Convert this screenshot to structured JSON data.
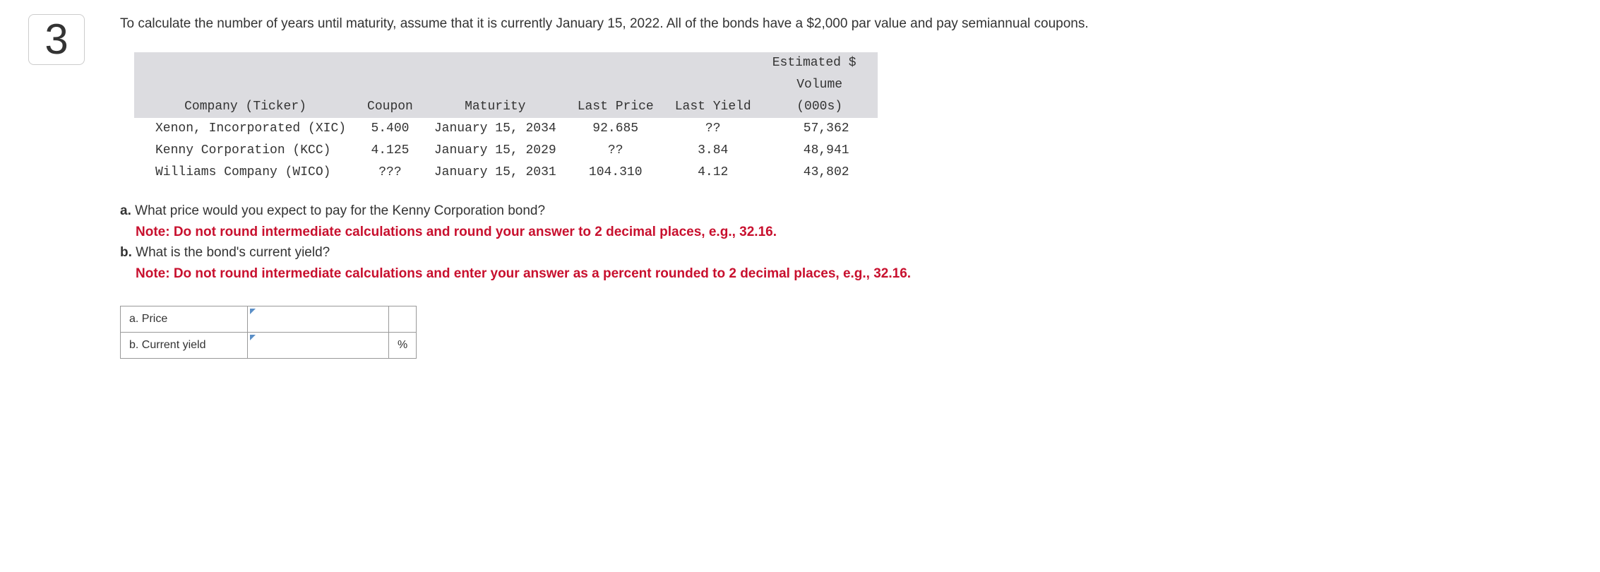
{
  "question_number": "3",
  "intro_text": "To calculate the number of years until maturity, assume that it is currently January 15, 2022. All of the bonds have a $2,000 par value and pay semiannual coupons.",
  "bond_table": {
    "header_estimated": "Estimated $",
    "header_volume": "Volume",
    "columns": {
      "company": "Company (Ticker)",
      "coupon": "Coupon",
      "maturity": "Maturity",
      "last_price": "Last Price",
      "last_yield": "Last Yield",
      "volume": "(000s)"
    },
    "rows": [
      {
        "company": "Xenon, Incorporated (XIC)",
        "coupon": "5.400",
        "maturity": "January 15, 2034",
        "last_price": "92.685",
        "last_yield": "??",
        "volume": "57,362"
      },
      {
        "company": "Kenny Corporation (KCC)",
        "coupon": "4.125",
        "maturity": "January 15, 2029",
        "last_price": "??",
        "last_yield": "3.84",
        "volume": "48,941"
      },
      {
        "company": "Williams Company (WICO)",
        "coupon": "???",
        "maturity": "January 15, 2031",
        "last_price": "104.310",
        "last_yield": "4.12",
        "volume": "43,802"
      }
    ]
  },
  "questions": {
    "a_label": "a.",
    "a_text": "What price would you expect to pay for the Kenny Corporation bond?",
    "a_note": "Note: Do not round intermediate calculations and round your answer to 2 decimal places, e.g., 32.16.",
    "b_label": "b.",
    "b_text": "What is the bond's current yield?",
    "b_note": "Note: Do not round intermediate calculations and enter your answer as a percent rounded to 2 decimal places, e.g., 32.16."
  },
  "answer_table": {
    "row_a_label": "a. Price",
    "row_b_label": "b. Current yield",
    "row_b_unit": "%"
  },
  "colors": {
    "table_header_bg": "#dcdce0",
    "note_color": "#c8102e",
    "border_color": "#999999",
    "triangle_color": "#5b8fc7"
  }
}
